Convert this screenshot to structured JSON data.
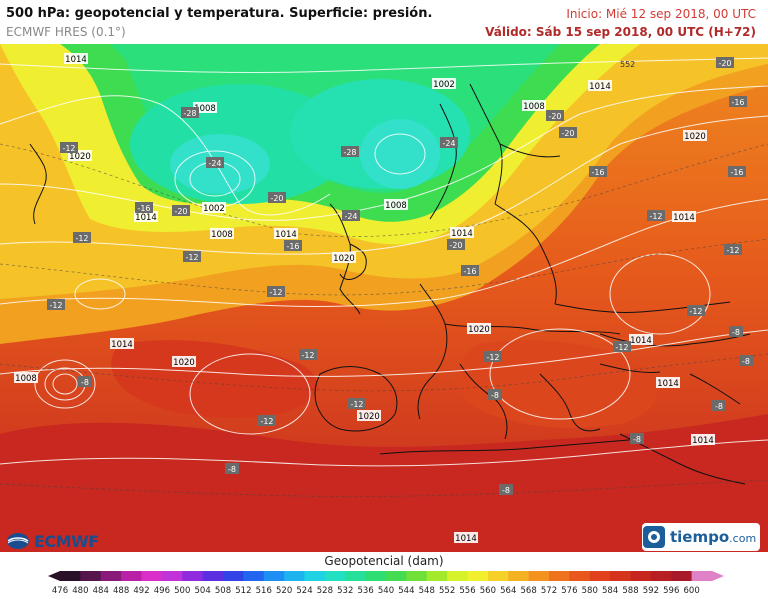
{
  "header": {
    "title": "500 hPa: geopotencial y temperatura. Superficie: presión.",
    "model": "ECMWF HRES (0.1°)",
    "init": "Inicio: Mié 12 sep 2018, 00 UTC",
    "valid": "Válido: Sáb 15 sep 2018, 00 UTC (H+72)"
  },
  "map": {
    "pressure_labels": [
      "1014",
      "1008",
      "1002",
      "1008",
      "1002",
      "1014",
      "1020",
      "1014",
      "1008",
      "1008",
      "1014",
      "1020",
      "1020",
      "1014",
      "1020",
      "1014",
      "1008",
      "1020",
      "1014",
      "1020",
      "1014",
      "1014",
      "1014",
      "1014"
    ],
    "temperature_labels": [
      "-28",
      "-24",
      "-28",
      "-24",
      "-20",
      "-20",
      "-16",
      "-12",
      "-12",
      "-12",
      "-20",
      "-16",
      "-12",
      "-24",
      "-20",
      "-16",
      "-12",
      "-12",
      "-12",
      "-12",
      "-8",
      "-12",
      "-12",
      "-8",
      "-8",
      "-8",
      "-8",
      "-20",
      "-16",
      "-16",
      "-20",
      "-16",
      "-12",
      "-12",
      "-12",
      "-8",
      "-8",
      "-8"
    ],
    "contour_label": "552",
    "colors": {
      "cold_deep": "#2dd96a",
      "cold_mid": "#1fe0a0",
      "cyan_core": "#33e0c9",
      "yellow": "#e8f23a",
      "orange": "#f29c1f",
      "dark_orange": "#e8661f",
      "red": "#d8381f",
      "dark_red": "#b8251f"
    }
  },
  "legend": {
    "title": "Geopotencial (dam)",
    "values": [
      476,
      480,
      484,
      488,
      492,
      496,
      500,
      504,
      508,
      512,
      516,
      520,
      524,
      528,
      532,
      536,
      540,
      544,
      548,
      552,
      556,
      560,
      564,
      568,
      572,
      576,
      580,
      584,
      588,
      592,
      596,
      600
    ],
    "colors": [
      "#2a1128",
      "#55154d",
      "#8a1a7a",
      "#b820a6",
      "#d92ec8",
      "#c133d8",
      "#8f2ce0",
      "#5b30e0",
      "#3344e6",
      "#2266f0",
      "#1e8ff2",
      "#1cb3ef",
      "#1fd3e3",
      "#22e0c2",
      "#25e09a",
      "#2ede75",
      "#44dc52",
      "#6ee038",
      "#a3ea2c",
      "#d5f22a",
      "#f2ef2e",
      "#f5d12a",
      "#f5b124",
      "#f3921f",
      "#ef731c",
      "#e8581c",
      "#df421c",
      "#d4331d",
      "#c7261e",
      "#b81f22",
      "#a81a2a",
      "#e080c8"
    ]
  },
  "logos": {
    "ecmwf": "ECMWF",
    "tiempo": "tiempo",
    "tiempo_suffix": ".com"
  }
}
